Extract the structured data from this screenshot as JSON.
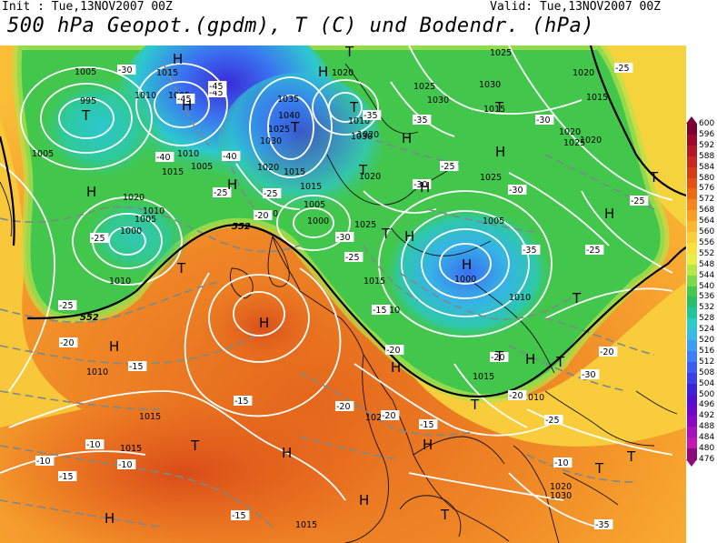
{
  "header": {
    "init": "Init : Tue,13NOV2007 00Z",
    "valid": "Valid: Tue,13NOV2007 00Z",
    "title": "500 hPa Geopot.(gpdm), T (C) und Bodendr. (hPa)"
  },
  "map": {
    "pressure_labels": [
      "1005",
      "995",
      "1010",
      "1005",
      "1015",
      "1005",
      "1005",
      "1010",
      "1015",
      "1020",
      "1035",
      "1040",
      "1030",
      "1025",
      "1020",
      "1015",
      "1010",
      "1020",
      "1030",
      "1025",
      "1030",
      "1025",
      "1020",
      "1015",
      "1020",
      "1010",
      "1015",
      "1005",
      "1000",
      "1010",
      "1005",
      "1000",
      "1010",
      "1020",
      "1025",
      "1030",
      "1015",
      "1020",
      "1025",
      "1005",
      "1000",
      "1010",
      "1015",
      "1010",
      "1015",
      "1020",
      "1015",
      "1010",
      "1015",
      "1020",
      "1030",
      "1025",
      "1020",
      "1010",
      "1015"
    ],
    "temp_labels": [
      "-30",
      "-45",
      "-45",
      "-45",
      "-40",
      "-40",
      "-35",
      "-35",
      "-30",
      "-25",
      "-25",
      "-30",
      "-25",
      "-30",
      "-20",
      "-25",
      "-25",
      "-30",
      "-35",
      "-25",
      "-25",
      "-20",
      "-25",
      "-25",
      "-20",
      "-15",
      "-15",
      "-20",
      "-10",
      "-10",
      "-10",
      "-15",
      "-15",
      "-20",
      "-15",
      "-10",
      "-20",
      "-15",
      "-20",
      "-20",
      "-25",
      "-30",
      "-35"
    ],
    "highs_lows": [
      "T",
      "H",
      "H",
      "H",
      "T",
      "T",
      "H",
      "T",
      "H",
      "H",
      "T",
      "H",
      "T",
      "H",
      "T",
      "H",
      "T",
      "H",
      "H",
      "T",
      "H",
      "T",
      "H",
      "H",
      "T",
      "T",
      "H",
      "T",
      "T",
      "H",
      "H",
      "T",
      "T",
      "H",
      "H",
      "T"
    ],
    "geopot_labels": [
      "552",
      "552"
    ]
  },
  "colorbar": {
    "levels": [
      "600",
      "596",
      "592",
      "588",
      "584",
      "580",
      "576",
      "572",
      "568",
      "564",
      "560",
      "556",
      "552",
      "548",
      "544",
      "540",
      "536",
      "532",
      "528",
      "524",
      "520",
      "516",
      "512",
      "508",
      "504",
      "500",
      "496",
      "492",
      "488",
      "484",
      "480",
      "476"
    ],
    "colors": [
      "#7a0030",
      "#9a0a2a",
      "#b01825",
      "#c62a1e",
      "#d63c14",
      "#e35212",
      "#ee6a12",
      "#f5841a",
      "#f89e24",
      "#fab82e",
      "#fbcf38",
      "#f7e240",
      "#e9ef46",
      "#b8e64a",
      "#7fd84a",
      "#45c84e",
      "#2cbd6a",
      "#26c49a",
      "#2ecbc5",
      "#3ab8e6",
      "#3e9df3",
      "#3e7ff7",
      "#3a5ef2",
      "#3a40e6",
      "#3c22d8",
      "#5010d0",
      "#6a08c8",
      "#8a08c0",
      "#a810b8",
      "#c218b0",
      "#8a0a7a"
    ]
  }
}
